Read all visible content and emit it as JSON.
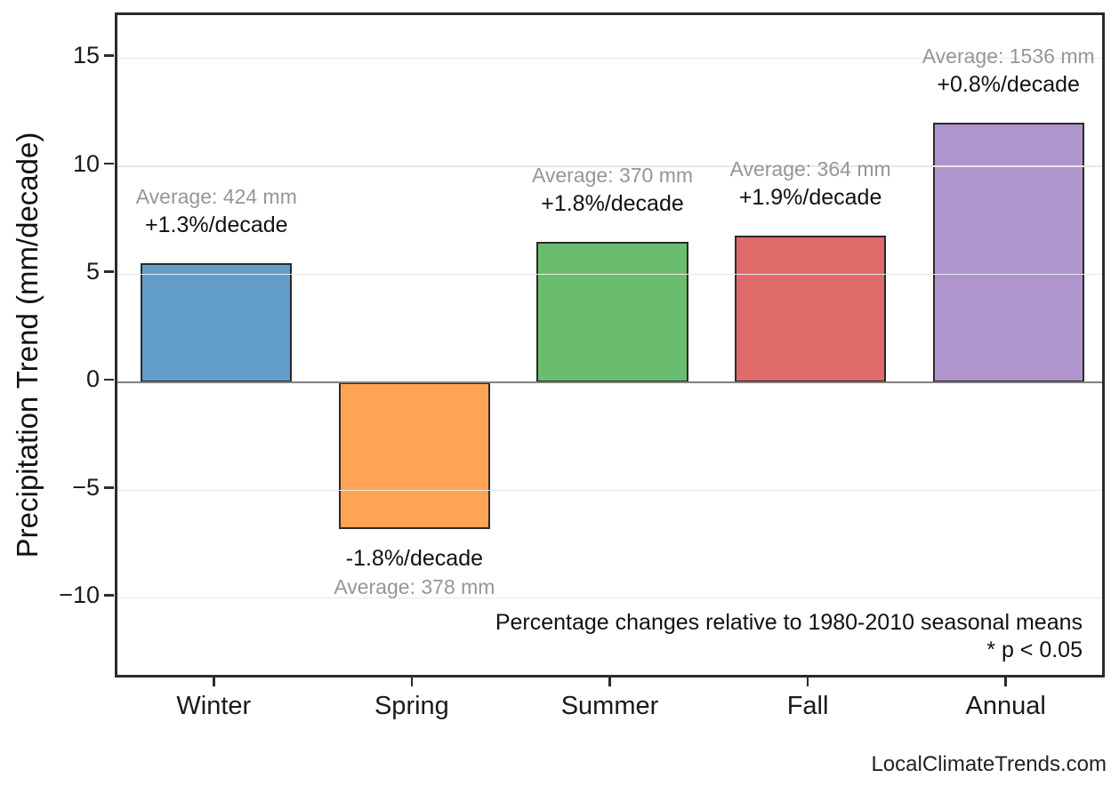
{
  "chart_data": {
    "type": "bar",
    "title": "",
    "xlabel": "",
    "ylabel": "Precipitation Trend (mm/decade)",
    "categories": [
      "Winter",
      "Spring",
      "Summer",
      "Fall",
      "Annual"
    ],
    "values": [
      5.5,
      -6.8,
      6.5,
      6.8,
      12.0
    ],
    "units": "mm/decade",
    "bar_colors": [
      "#629EC9",
      "#FFA455",
      "#6ABD6E",
      "#E16A6B",
      "#B094CE"
    ],
    "bar_edge_color": "#2a2a2a",
    "annotations": [
      {
        "average": "Average: 424 mm",
        "trend": "+1.3%/decade"
      },
      {
        "average": "Average: 378 mm",
        "trend": "-1.8%/decade"
      },
      {
        "average": "Average: 370 mm",
        "trend": "+1.8%/decade"
      },
      {
        "average": "Average: 364 mm",
        "trend": "+1.9%/decade"
      },
      {
        "average": "Average: 1536 mm",
        "trend": "+0.8%/decade"
      }
    ],
    "yticks": [
      15,
      10,
      5,
      0,
      -5,
      -10
    ],
    "ytick_labels": [
      "15",
      "10",
      "5",
      "0",
      "−5",
      "−10"
    ],
    "ylim": [
      -13.8,
      17.0
    ],
    "grid": "horizontal",
    "grid_color": "#e8e8e8",
    "zero_line_color": "#808080",
    "legend": "none",
    "note_line1": "Percentage changes relative to 1980-2010 seasonal means",
    "note_line2": "* p < 0.05",
    "watermark": "LocalClimateTrends.com"
  }
}
